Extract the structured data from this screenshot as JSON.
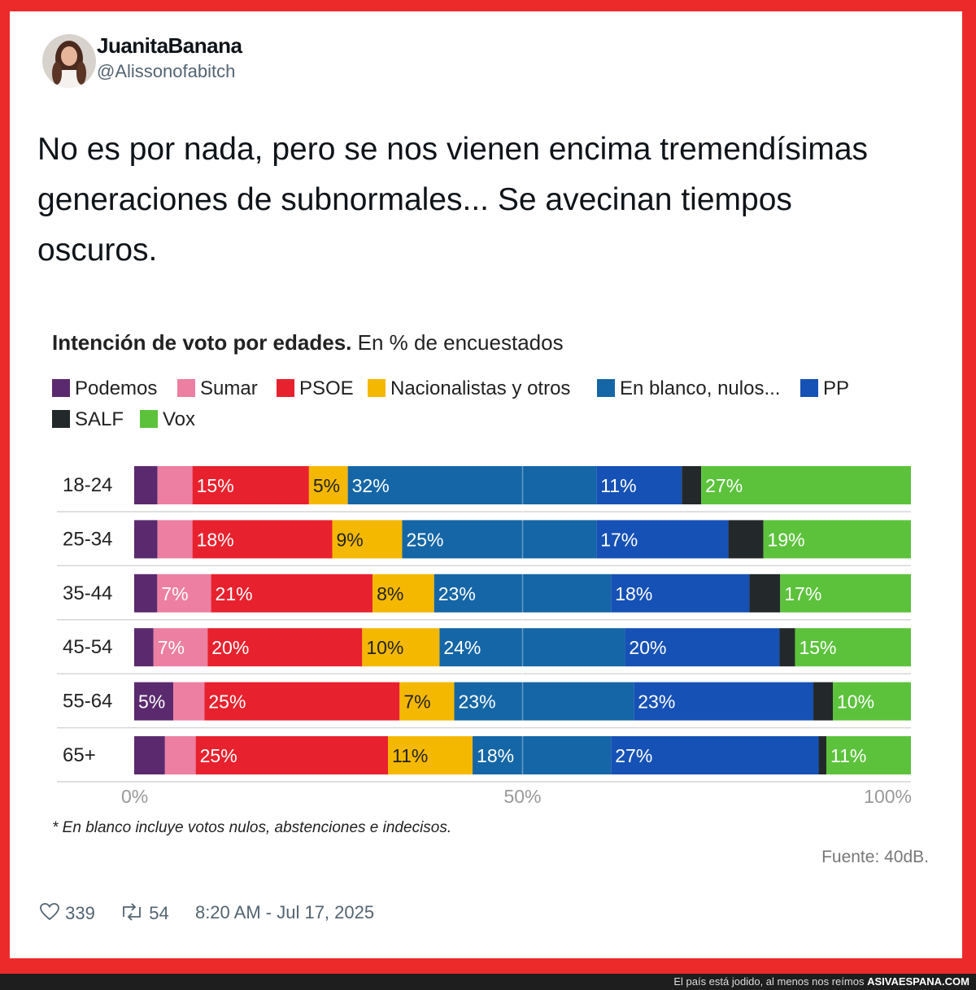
{
  "tweet": {
    "display_name": "JuanitaBanana",
    "handle": "@Alissonofabitch",
    "text": "No es por nada, pero se nos vienen encima tremendísimas generaciones de subnormales... Se avecinan tiempos oscuros.",
    "likes": "339",
    "retweets": "54",
    "timestamp": "8:20 AM - Jul 17, 2025"
  },
  "chart_data": {
    "type": "bar",
    "orientation": "horizontal",
    "stacked": true,
    "title": "Intención de voto por edades.",
    "subtitle": "En % de encuestados",
    "categories": [
      "18-24",
      "25-34",
      "35-44",
      "45-54",
      "55-64",
      "65+"
    ],
    "series": [
      {
        "name": "Podemos",
        "color": "#5b2a6e",
        "values": [
          3,
          3,
          3,
          2.5,
          5,
          4
        ],
        "labels": [
          "",
          "",
          "",
          "",
          "5%",
          ""
        ]
      },
      {
        "name": "Sumar",
        "color": "#ec7fa2",
        "values": [
          4.5,
          4.5,
          7,
          7,
          4,
          4
        ],
        "labels": [
          "",
          "",
          "7%",
          "7%",
          "",
          ""
        ]
      },
      {
        "name": "PSOE",
        "color": "#e8212e",
        "values": [
          15,
          18,
          21,
          20,
          25,
          25
        ],
        "labels": [
          "15%",
          "18%",
          "21%",
          "20%",
          "25%",
          "25%"
        ]
      },
      {
        "name": "Nacionalistas y otros",
        "color": "#f5b800",
        "values": [
          5,
          9,
          8,
          10,
          7,
          11
        ],
        "labels": [
          "5%",
          "9%",
          "8%",
          "10%",
          "7%",
          "11%"
        ]
      },
      {
        "name": "En blanco, nulos...",
        "color": "#1566a6",
        "values": [
          32,
          25,
          23,
          24,
          23,
          18
        ],
        "labels": [
          "32%",
          "25%",
          "23%",
          "24%",
          "23%",
          "18%"
        ]
      },
      {
        "name": "PP",
        "color": "#1651b5",
        "values": [
          11,
          17,
          18,
          20,
          23,
          27
        ],
        "labels": [
          "11%",
          "17%",
          "18%",
          "20%",
          "23%",
          "27%"
        ]
      },
      {
        "name": "SALF",
        "color": "#23292b",
        "values": [
          2.5,
          4.5,
          4,
          2,
          2.5,
          1
        ],
        "labels": [
          "",
          "",
          "",
          "",
          "",
          ""
        ]
      },
      {
        "name": "Vox",
        "color": "#5cc23c",
        "values": [
          27,
          19,
          17,
          15,
          10,
          11
        ],
        "labels": [
          "27%",
          "19%",
          "17%",
          "15%",
          "10%",
          "11%"
        ]
      }
    ],
    "xlim": [
      0,
      100
    ],
    "x_ticks": [
      "0%",
      "50%",
      "100%"
    ],
    "grid": true,
    "legend": "top",
    "footnote": "* En blanco incluye votos nulos, abstenciones e indecisos.",
    "source": "Fuente: 40dB."
  },
  "watermark": {
    "caption": "El país está jodido, al menos nos reímos",
    "site": "ASIVAESPANA.COM"
  }
}
